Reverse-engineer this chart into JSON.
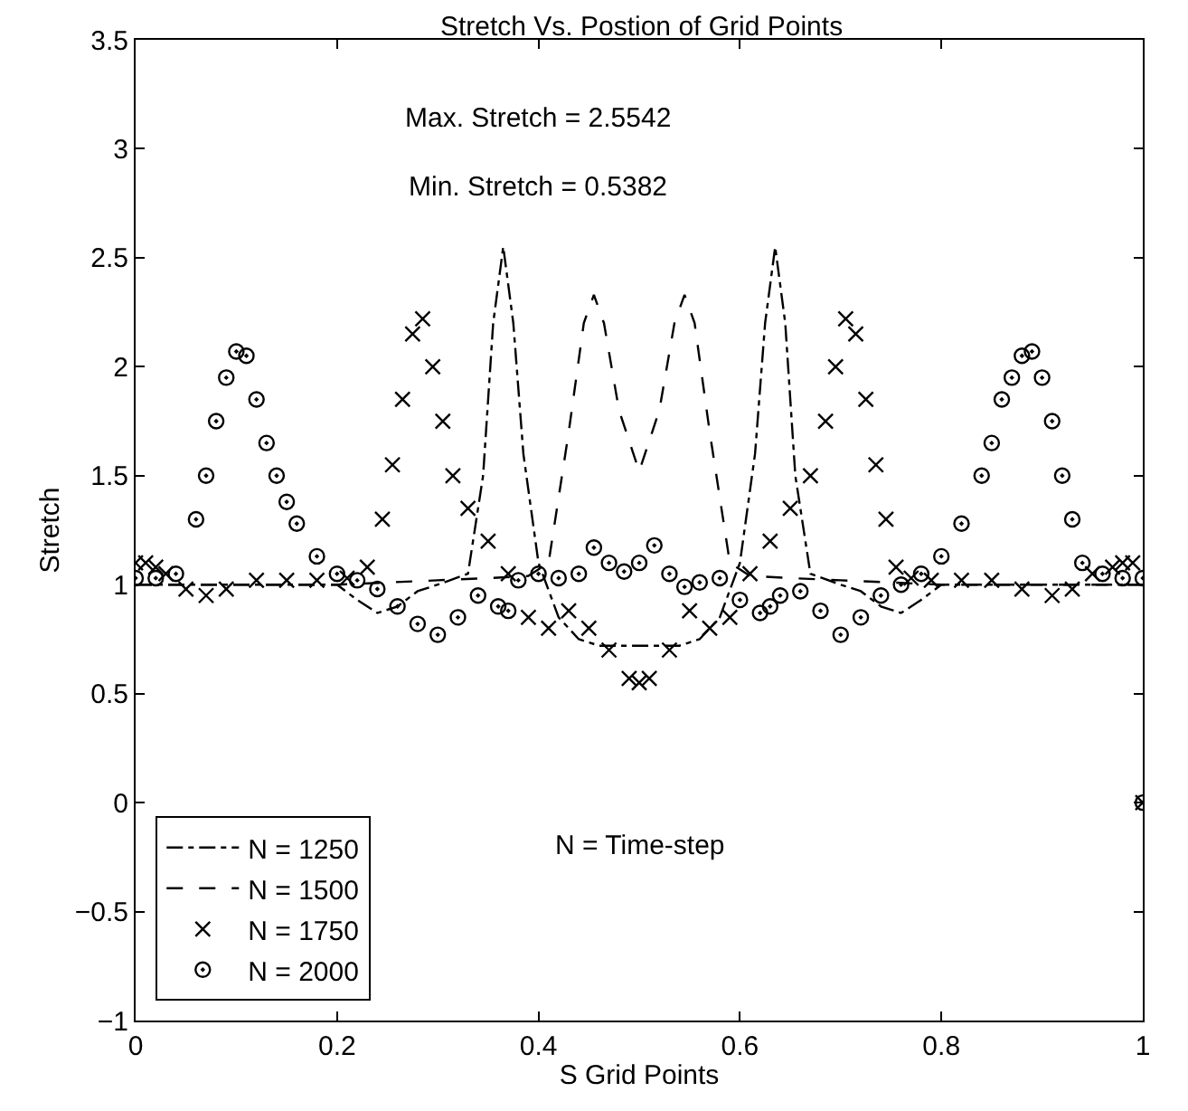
{
  "chart_data": {
    "type": "line",
    "title": "Stretch Vs. Postion of Grid Points",
    "xlabel": "S Grid Points",
    "ylabel": "Stretch",
    "xlim": [
      0,
      1
    ],
    "xticks": [
      0,
      0.2,
      0.4,
      0.6,
      0.8,
      1
    ],
    "ylim": [
      -1,
      3.5
    ],
    "yticks": [
      {
        "value": -1,
        "label": "−1"
      },
      {
        "value": -0.5,
        "label": "−0.5"
      },
      0,
      0.5,
      1,
      1.5,
      2,
      2.5,
      3,
      3.5
    ],
    "legend": "bottom left",
    "annotations": [
      "Max. Stretch = 2.5542",
      "Min. Stretch = 0.5382",
      "N = Time-step"
    ],
    "series": [
      {
        "name": "N = 1250",
        "color": "#000000",
        "line_style": "dashdot",
        "marker": "none",
        "x": [
          0,
          0.1,
          0.2,
          0.22,
          0.24,
          0.26,
          0.28,
          0.3,
          0.33,
          0.345,
          0.355,
          0.365,
          0.375,
          0.385,
          0.4,
          0.42,
          0.44,
          0.46,
          0.5,
          0.54,
          0.56,
          0.58,
          0.6,
          0.615,
          0.625,
          0.635,
          0.645,
          0.655,
          0.67,
          0.7,
          0.72,
          0.74,
          0.76,
          0.78,
          0.8,
          0.9,
          1
        ],
        "values": [
          1,
          1,
          1,
          0.93,
          0.87,
          0.9,
          0.97,
          1.0,
          1.05,
          1.5,
          2.2,
          2.55,
          2.2,
          1.6,
          1.1,
          0.85,
          0.75,
          0.72,
          0.72,
          0.72,
          0.75,
          0.85,
          1.1,
          1.6,
          2.2,
          2.55,
          2.2,
          1.5,
          1.05,
          1.0,
          0.97,
          0.9,
          0.87,
          0.93,
          1,
          1,
          1
        ]
      },
      {
        "name": "N = 1500",
        "color": "#000000",
        "line_style": "dashed",
        "marker": "none",
        "x": [
          0,
          0.2,
          0.25,
          0.3,
          0.35,
          0.39,
          0.41,
          0.43,
          0.445,
          0.455,
          0.465,
          0.48,
          0.5,
          0.52,
          0.535,
          0.545,
          0.555,
          0.57,
          0.59,
          0.61,
          0.65,
          0.7,
          0.75,
          0.8,
          1
        ],
        "values": [
          1,
          1,
          1.01,
          1.02,
          1.03,
          1.04,
          1.1,
          1.7,
          2.2,
          2.33,
          2.2,
          1.8,
          1.52,
          1.8,
          2.2,
          2.33,
          2.2,
          1.7,
          1.1,
          1.04,
          1.03,
          1.02,
          1.01,
          1,
          1
        ]
      },
      {
        "name": "N = 1750",
        "color": "#000000",
        "type": "scatter",
        "marker": "cross",
        "x": [
          0,
          0.01,
          0.02,
          0.03,
          0.05,
          0.07,
          0.09,
          0.12,
          0.15,
          0.18,
          0.21,
          0.23,
          0.245,
          0.255,
          0.265,
          0.275,
          0.285,
          0.295,
          0.305,
          0.315,
          0.33,
          0.35,
          0.37,
          0.39,
          0.41,
          0.43,
          0.45,
          0.47,
          0.49,
          0.5,
          0.51,
          0.53,
          0.55,
          0.57,
          0.59,
          0.61,
          0.63,
          0.65,
          0.67,
          0.685,
          0.695,
          0.705,
          0.715,
          0.725,
          0.735,
          0.745,
          0.755,
          0.77,
          0.79,
          0.82,
          0.85,
          0.88,
          0.91,
          0.93,
          0.95,
          0.97,
          0.98,
          0.99,
          1
        ],
        "values": [
          1.1,
          1.1,
          1.08,
          1.05,
          0.98,
          0.95,
          0.98,
          1.02,
          1.02,
          1.02,
          1.03,
          1.08,
          1.3,
          1.55,
          1.85,
          2.15,
          2.22,
          2.0,
          1.75,
          1.5,
          1.35,
          1.2,
          1.05,
          0.85,
          0.8,
          0.88,
          0.8,
          0.7,
          0.57,
          0.55,
          0.57,
          0.7,
          0.88,
          0.8,
          0.85,
          1.05,
          1.2,
          1.35,
          1.5,
          1.75,
          2.0,
          2.22,
          2.15,
          1.85,
          1.55,
          1.3,
          1.08,
          1.03,
          1.02,
          1.02,
          1.02,
          0.98,
          0.95,
          0.98,
          1.05,
          1.08,
          1.1,
          1.1,
          0
        ]
      },
      {
        "name": "N = 2000",
        "color": "#000000",
        "type": "scatter",
        "marker": "circle",
        "x": [
          0,
          0.02,
          0.04,
          0.06,
          0.07,
          0.08,
          0.09,
          0.1,
          0.11,
          0.12,
          0.13,
          0.14,
          0.15,
          0.16,
          0.18,
          0.2,
          0.22,
          0.24,
          0.26,
          0.28,
          0.3,
          0.32,
          0.34,
          0.36,
          0.37,
          0.38,
          0.4,
          0.42,
          0.44,
          0.455,
          0.47,
          0.485,
          0.5,
          0.515,
          0.53,
          0.545,
          0.56,
          0.58,
          0.6,
          0.62,
          0.63,
          0.64,
          0.66,
          0.68,
          0.7,
          0.72,
          0.74,
          0.76,
          0.78,
          0.8,
          0.82,
          0.84,
          0.85,
          0.86,
          0.87,
          0.88,
          0.89,
          0.9,
          0.91,
          0.92,
          0.93,
          0.94,
          0.96,
          0.98,
          1,
          1
        ],
        "values": [
          1.03,
          1.03,
          1.05,
          1.3,
          1.5,
          1.75,
          1.95,
          2.07,
          2.05,
          1.85,
          1.65,
          1.5,
          1.38,
          1.28,
          1.13,
          1.05,
          1.02,
          0.98,
          0.9,
          0.82,
          0.77,
          0.85,
          0.95,
          0.9,
          0.88,
          1.02,
          1.05,
          1.03,
          1.05,
          1.17,
          1.1,
          1.06,
          1.1,
          1.18,
          1.05,
          0.99,
          1.01,
          1.03,
          0.93,
          0.87,
          0.9,
          0.95,
          0.97,
          0.88,
          0.77,
          0.85,
          0.95,
          1.0,
          1.05,
          1.13,
          1.28,
          1.5,
          1.65,
          1.85,
          1.95,
          2.05,
          2.07,
          1.95,
          1.75,
          1.5,
          1.3,
          1.1,
          1.05,
          1.03,
          1.03,
          0
        ]
      }
    ]
  }
}
